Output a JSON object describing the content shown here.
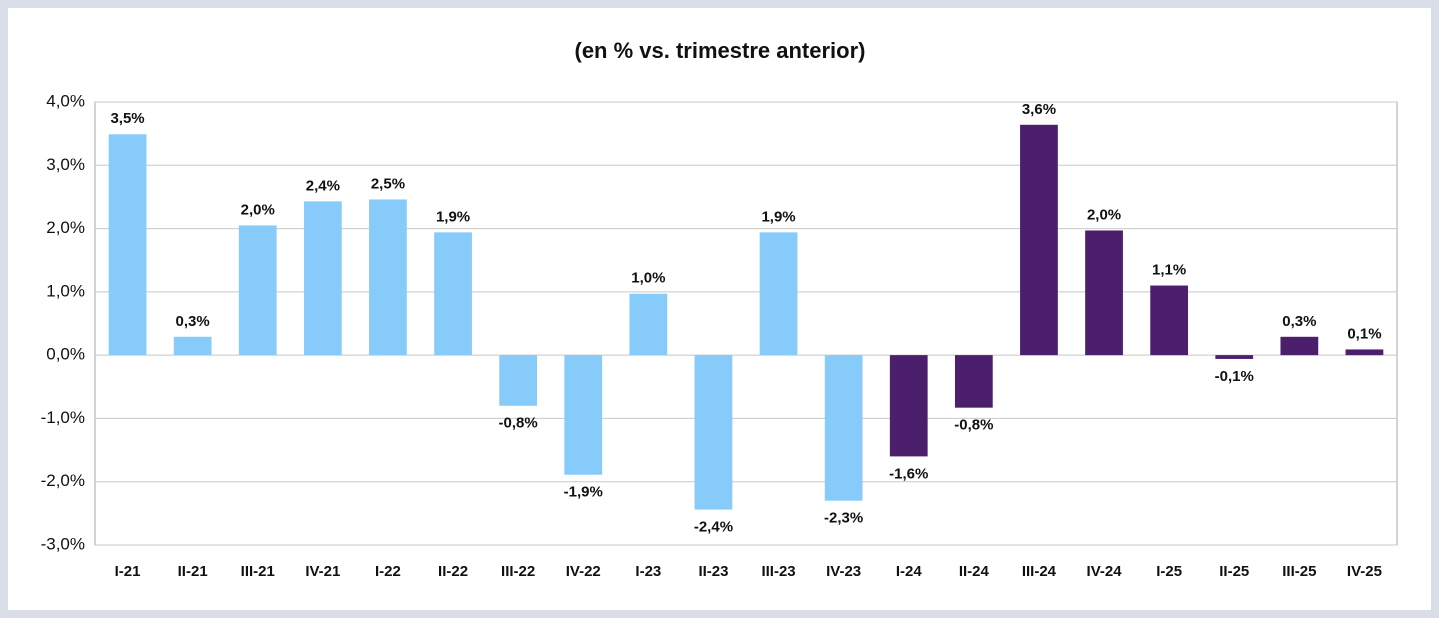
{
  "chart_data": {
    "type": "bar",
    "title": "(en % vs. trimestre anterior)",
    "categories": [
      "I-21",
      "II-21",
      "III-21",
      "IV-21",
      "I-22",
      "II-22",
      "III-22",
      "IV-22",
      "I-23",
      "II-23",
      "III-23",
      "IV-23",
      "I-24",
      "II-24",
      "III-24",
      "IV-24",
      "I-25",
      "II-25",
      "III-25",
      "IV-25"
    ],
    "values": [
      3.49,
      0.29,
      2.05,
      2.43,
      2.46,
      1.94,
      -0.8,
      -1.89,
      0.97,
      -2.44,
      1.94,
      -2.3,
      -1.6,
      -0.83,
      3.64,
      1.97,
      1.1,
      -0.06,
      0.29,
      0.09
    ],
    "value_labels": [
      "3,5%",
      "0,3%",
      "2,0%",
      "2,4%",
      "2,5%",
      "1,9%",
      "-0,8%",
      "-1,9%",
      "1,0%",
      "-2,4%",
      "1,9%",
      "-2,3%",
      "-1,6%",
      "-0,8%",
      "3,6%",
      "2,0%",
      "1,1%",
      "-0,1%",
      "0,3%",
      "0,1%"
    ],
    "colors": [
      "#87cbfb",
      "#87cbfb",
      "#87cbfb",
      "#87cbfb",
      "#87cbfb",
      "#87cbfb",
      "#87cbfb",
      "#87cbfb",
      "#87cbfb",
      "#87cbfb",
      "#87cbfb",
      "#87cbfb",
      "#4b1f6b",
      "#4b1f6b",
      "#4b1f6b",
      "#4b1f6b",
      "#4b1f6b",
      "#4b1f6b",
      "#4b1f6b",
      "#4b1f6b"
    ],
    "ylim": [
      -3,
      4
    ],
    "yticks": [
      {
        "value": -3,
        "label": "-3,0%"
      },
      {
        "value": -2,
        "label": "-2,0%"
      },
      {
        "value": -1,
        "label": "-1,0%"
      },
      {
        "value": 0,
        "label": "0,0%"
      },
      {
        "value": 1,
        "label": "1,0%"
      },
      {
        "value": 2,
        "label": "2,0%"
      },
      {
        "value": 3,
        "label": "3,0%"
      },
      {
        "value": 4,
        "label": "4,0%"
      }
    ],
    "grid": true
  }
}
